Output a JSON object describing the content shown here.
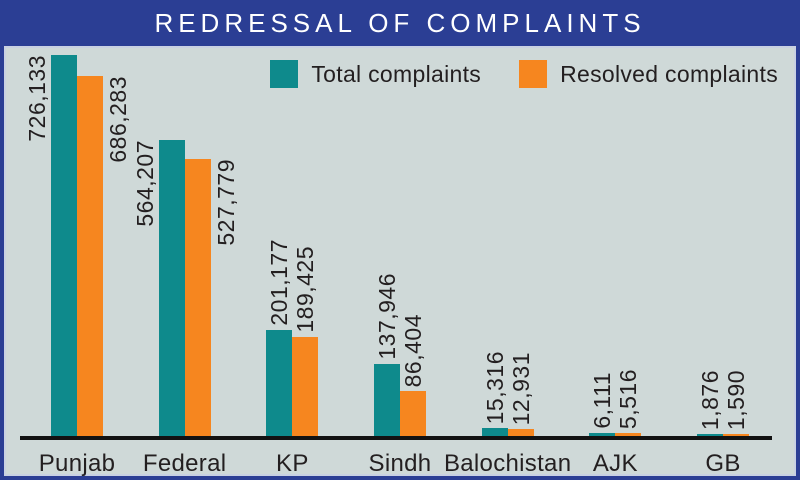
{
  "title": "REDRESSAL OF COMPLAINTS",
  "colors": {
    "frame_blue": "#2b3e94",
    "chart_bg": "#cfd9d8",
    "inner_border": "#c9d1e2",
    "teal": "#0e8a8c",
    "orange": "#f6861f",
    "axis": "#121212",
    "label_text": "#231f20",
    "title_text": "#ffffff"
  },
  "legend": {
    "items": [
      {
        "label": "Total complaints",
        "color": "#0e8a8c"
      },
      {
        "label": "Resolved complaints",
        "color": "#f6861f"
      }
    ]
  },
  "chart_data": {
    "type": "bar",
    "title": "REDRESSAL OF COMPLAINTS",
    "categories": [
      "Punjab",
      "Federal",
      "KP",
      "Sindh",
      "Balochistan",
      "AJK",
      "GB"
    ],
    "series": [
      {
        "name": "Total complaints",
        "color": "#0e8a8c",
        "values": [
          726133,
          564207,
          201177,
          137946,
          15316,
          6111,
          1876
        ],
        "labels": [
          "726,133",
          "564,207",
          "201,177",
          "137,946",
          "15,316",
          "6,111",
          "1,876"
        ]
      },
      {
        "name": "Resolved complaints",
        "color": "#f6861f",
        "values": [
          686283,
          527779,
          189425,
          86404,
          12931,
          5516,
          1590
        ],
        "labels": [
          "686,283",
          "527,779",
          "189,425",
          "86,404",
          "12,931",
          "5,516",
          "1,590"
        ]
      }
    ],
    "xlabel": "",
    "ylabel": "",
    "ylim": [
      0,
      726133
    ],
    "grid": false,
    "legend_position": "top-right",
    "value_labels_rotated": true
  }
}
